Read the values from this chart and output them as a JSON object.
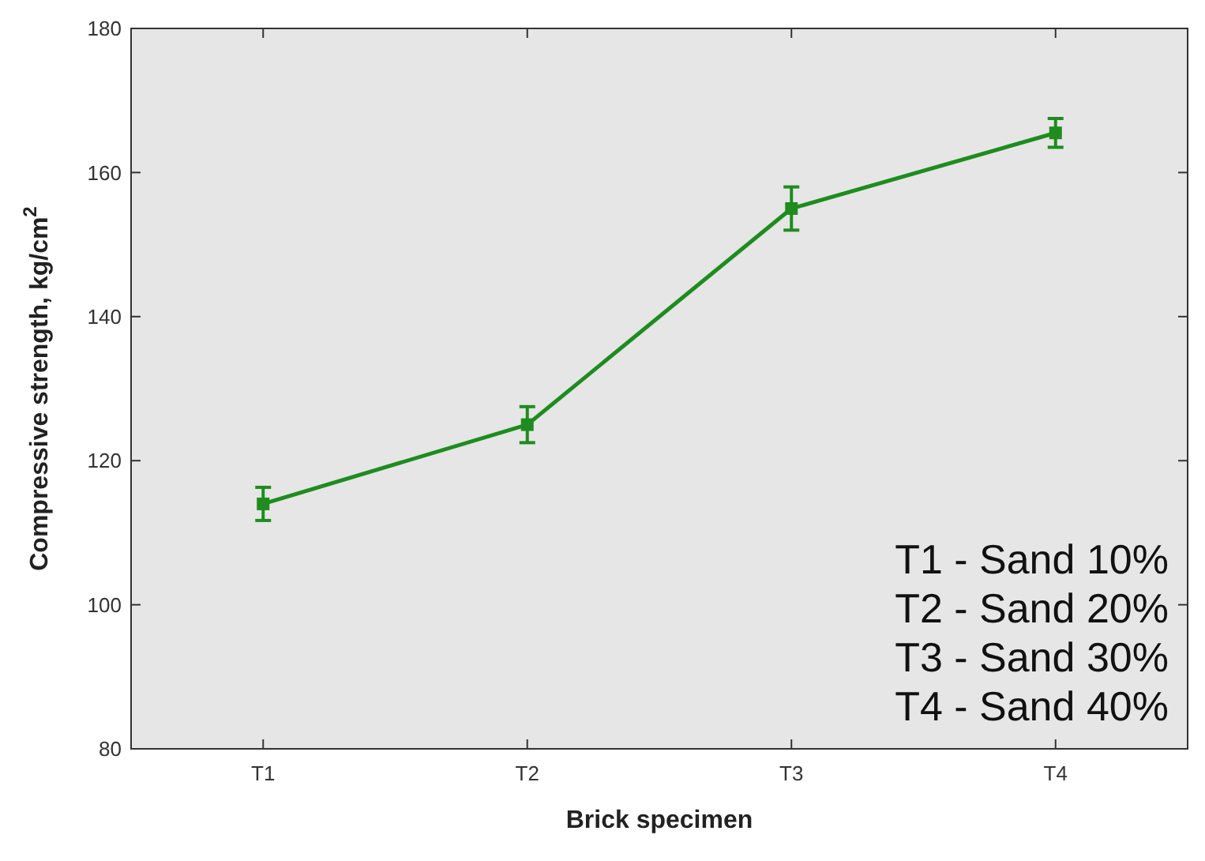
{
  "chart_data": {
    "type": "line",
    "xlabel": "Brick specimen",
    "ylabel": "Compressive strength, kg/cm$^{2}$",
    "categories": [
      "T1",
      "T2",
      "T3",
      "T4"
    ],
    "series": [
      {
        "color": "#1e8c1e",
        "values": [
          114,
          125,
          155,
          165.5
        ],
        "errors": [
          2.3,
          2.5,
          3,
          2
        ]
      }
    ],
    "ylim": [
      80,
      180
    ],
    "yticks": [
      80,
      100,
      120,
      140,
      160,
      180
    ],
    "marker": "square",
    "line_style": "solid",
    "annotations": [
      "T1 - Sand 10%",
      "T2 - Sand 20%",
      "T3 - Sand 30%",
      "T4 - Sand 40%"
    ]
  }
}
